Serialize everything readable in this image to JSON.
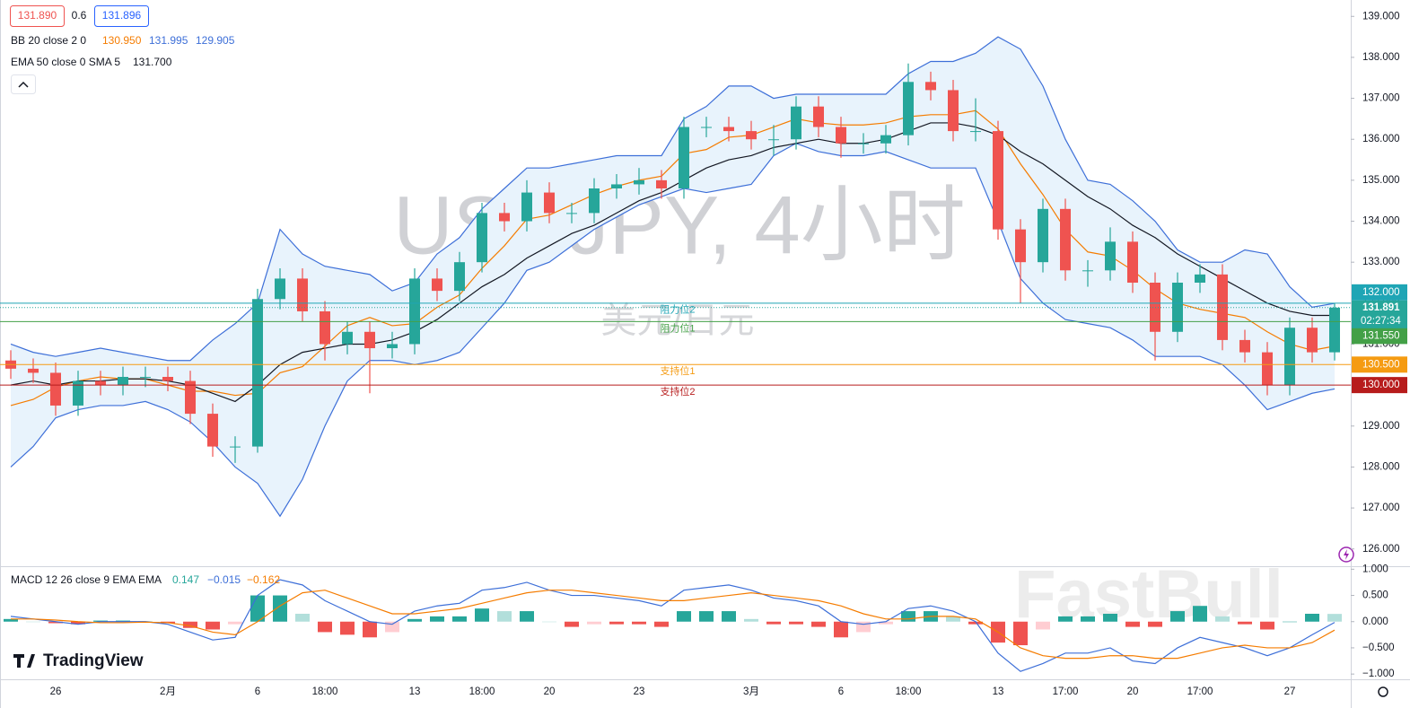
{
  "chart_data": {
    "type": "candlestick",
    "title": "USDJPY, 4小时",
    "subtitle": "美元/日元",
    "quote": [
      "131.890",
      "0.6",
      "131.896"
    ],
    "x": [
      null,
      null,
      "26",
      null,
      null,
      null,
      null,
      "2月",
      null,
      null,
      null,
      "6",
      null,
      null,
      "18:00",
      null,
      null,
      null,
      "13",
      null,
      null,
      "18:00",
      null,
      null,
      "20",
      null,
      null,
      null,
      "23",
      null,
      null,
      null,
      null,
      "3月",
      null,
      null,
      null,
      "6",
      null,
      null,
      "18:00",
      null,
      null,
      null,
      "13",
      null,
      null,
      "17:00",
      null,
      null,
      "20",
      null,
      null,
      "17:00",
      null,
      null,
      null,
      "27",
      null,
      null
    ],
    "open": [
      130.6,
      130.4,
      130.3,
      129.5,
      130.1,
      130.0,
      130.2,
      130.2,
      130.1,
      129.3,
      128.5,
      128.5,
      132.1,
      132.6,
      131.8,
      131.0,
      131.3,
      130.9,
      131.0,
      132.6,
      132.3,
      133.0,
      134.2,
      134.0,
      134.7,
      134.2,
      134.2,
      134.8,
      134.9,
      135.0,
      134.8,
      136.3,
      136.3,
      136.2,
      136.0,
      136.0,
      136.8,
      136.3,
      135.9,
      135.9,
      136.1,
      137.4,
      137.2,
      136.2,
      136.2,
      133.8,
      133.0,
      134.3,
      132.8,
      132.8,
      133.5,
      132.5,
      131.3,
      132.5,
      132.7,
      131.1,
      130.8,
      130.0,
      131.4,
      130.8
    ],
    "high": [
      130.85,
      130.65,
      130.55,
      130.35,
      130.35,
      130.45,
      130.45,
      130.45,
      130.35,
      129.55,
      128.75,
      132.35,
      132.85,
      132.85,
      132.05,
      131.55,
      131.55,
      131.3,
      132.85,
      132.85,
      133.25,
      134.45,
      134.45,
      135.0,
      134.95,
      134.45,
      135.05,
      135.15,
      135.3,
      135.25,
      136.55,
      136.55,
      136.55,
      136.45,
      136.35,
      137.05,
      137.05,
      136.55,
      136.15,
      136.35,
      137.85,
      137.65,
      137.45,
      137.0,
      136.45,
      134.05,
      134.55,
      134.55,
      133.05,
      133.85,
      133.75,
      132.75,
      132.75,
      132.95,
      132.95,
      131.35,
      131.05,
      131.65,
      131.65,
      132.0
    ],
    "low": [
      130.15,
      130.05,
      129.25,
      129.25,
      129.75,
      129.75,
      129.95,
      129.85,
      129.05,
      128.25,
      128.1,
      128.35,
      131.85,
      131.55,
      130.6,
      130.75,
      129.8,
      130.65,
      130.75,
      132.05,
      132.05,
      132.75,
      133.75,
      133.75,
      133.95,
      133.95,
      133.95,
      134.55,
      134.65,
      134.55,
      134.55,
      136.05,
      135.95,
      135.75,
      135.6,
      135.75,
      136.05,
      135.55,
      135.65,
      135.65,
      135.85,
      136.95,
      135.95,
      135.95,
      133.55,
      132.0,
      132.75,
      132.55,
      132.4,
      132.55,
      132.25,
      130.6,
      131.05,
      132.25,
      130.85,
      130.55,
      129.75,
      129.75,
      130.55,
      130.6
    ],
    "close": [
      130.4,
      130.3,
      129.5,
      130.1,
      130.0,
      130.2,
      130.2,
      130.1,
      129.3,
      128.5,
      128.5,
      132.1,
      132.6,
      131.8,
      131.0,
      131.3,
      130.9,
      131.0,
      132.6,
      132.3,
      133.0,
      134.2,
      134.0,
      134.7,
      134.2,
      134.2,
      134.8,
      134.9,
      135.0,
      134.8,
      136.3,
      136.3,
      136.2,
      136.0,
      136.0,
      136.8,
      136.3,
      135.9,
      135.9,
      136.1,
      137.4,
      137.2,
      136.2,
      136.2,
      133.8,
      133.0,
      134.3,
      132.8,
      132.8,
      133.5,
      132.5,
      131.3,
      132.5,
      132.7,
      131.1,
      130.8,
      130.0,
      131.4,
      130.8,
      131.89
    ],
    "up_color": "#26a69a",
    "down_color": "#ef5350",
    "ylim": [
      125.6,
      139.4
    ],
    "yticks": [
      {
        "value": 139,
        "label": "139.000"
      },
      {
        "value": 138,
        "label": "138.000"
      },
      {
        "value": 137,
        "label": "137.000"
      },
      {
        "value": 136,
        "label": "136.000"
      },
      {
        "value": 135,
        "label": "135.000"
      },
      {
        "value": 134,
        "label": "134.000"
      },
      {
        "value": 133,
        "label": "133.000"
      },
      {
        "value": 132,
        "label": "132.000"
      },
      {
        "value": 131,
        "label": "131.000"
      },
      {
        "value": 130,
        "label": "130.000"
      },
      {
        "value": 129,
        "label": "129.000"
      },
      {
        "value": 128,
        "label": "128.000"
      },
      {
        "value": 127,
        "label": "127.000"
      },
      {
        "value": 126,
        "label": "126.000"
      }
    ],
    "bands": {
      "label": "BB 20 close 2 0",
      "fill": "#e8f3fc",
      "basis": {
        "color": "#f57c00",
        "value_label": "130.950",
        "values": [
          129.5,
          129.65,
          129.95,
          130.1,
          130.2,
          130.15,
          130.15,
          130.0,
          129.85,
          129.85,
          129.75,
          129.8,
          130.3,
          130.45,
          130.95,
          131.45,
          131.65,
          131.45,
          131.5,
          131.9,
          132.2,
          132.85,
          133.4,
          134.05,
          134.15,
          134.4,
          134.65,
          134.85,
          135.0,
          135.1,
          135.65,
          135.75,
          136.05,
          136.1,
          136.3,
          136.5,
          136.4,
          136.35,
          136.35,
          136.4,
          136.55,
          136.6,
          136.6,
          136.7,
          136.25,
          135.4,
          134.65,
          133.8,
          133.25,
          133.15,
          132.8,
          132.35,
          132.0,
          131.85,
          131.75,
          131.65,
          131.3,
          131.0,
          130.85,
          130.95
        ]
      },
      "upper": {
        "color": "#3d6fd8",
        "value_label": "131.995",
        "values": [
          131.0,
          130.8,
          130.7,
          130.8,
          130.9,
          130.8,
          130.7,
          130.6,
          130.6,
          131.1,
          131.5,
          132.0,
          133.8,
          133.2,
          132.9,
          132.8,
          132.7,
          132.3,
          132.5,
          133.2,
          133.6,
          134.3,
          134.8,
          135.3,
          135.3,
          135.4,
          135.5,
          135.6,
          135.6,
          135.6,
          136.5,
          136.8,
          137.3,
          137.3,
          137.0,
          137.1,
          137.1,
          137.1,
          137.1,
          137.1,
          137.6,
          137.9,
          137.9,
          138.1,
          138.5,
          138.2,
          137.3,
          136.0,
          135.0,
          134.9,
          134.5,
          134.0,
          133.3,
          133.0,
          133.0,
          133.3,
          133.2,
          132.4,
          131.9,
          131.995
        ]
      },
      "lower": {
        "color": "#3d6fd8",
        "value_label": "129.905",
        "values": [
          128.0,
          128.5,
          129.2,
          129.4,
          129.5,
          129.5,
          129.6,
          129.4,
          129.1,
          128.6,
          128.0,
          127.6,
          126.8,
          127.7,
          129.0,
          130.1,
          130.6,
          130.6,
          130.5,
          130.6,
          130.8,
          131.4,
          132.0,
          132.8,
          133.0,
          133.4,
          133.8,
          134.1,
          134.4,
          134.6,
          134.8,
          134.7,
          134.8,
          134.9,
          135.6,
          135.9,
          135.7,
          135.6,
          135.6,
          135.7,
          135.5,
          135.3,
          135.3,
          135.3,
          134.0,
          132.6,
          132.0,
          131.6,
          131.5,
          131.4,
          131.1,
          130.7,
          130.7,
          130.7,
          130.5,
          130.0,
          129.4,
          129.6,
          129.8,
          129.905
        ]
      }
    },
    "ema": {
      "label": "EMA 50 close 0 SMA 5",
      "color": "#131722",
      "value_label": "131.700",
      "values": [
        130.0,
        130.1,
        130.0,
        130.1,
        130.1,
        130.15,
        130.15,
        130.1,
        130.0,
        129.8,
        129.6,
        130.0,
        130.5,
        130.8,
        130.9,
        131.0,
        131.0,
        131.1,
        131.3,
        131.6,
        132.0,
        132.4,
        132.7,
        133.1,
        133.4,
        133.7,
        133.9,
        134.2,
        134.5,
        134.7,
        135.0,
        135.3,
        135.5,
        135.6,
        135.8,
        135.9,
        136.0,
        135.9,
        135.9,
        136.0,
        136.2,
        136.4,
        136.4,
        136.3,
        136.1,
        135.7,
        135.4,
        135.0,
        134.6,
        134.3,
        133.9,
        133.6,
        133.2,
        132.9,
        132.6,
        132.3,
        132.0,
        131.8,
        131.7,
        131.7
      ]
    },
    "levels": [
      {
        "value": 132,
        "label": "132.000",
        "name": "阻力位2",
        "color": "#1fa5b5"
      },
      {
        "value": 131.55,
        "label": "131.550",
        "name": "阻力位1",
        "color": "#43a047"
      },
      {
        "value": 130.5,
        "label": "130.500",
        "name": "支持位1",
        "color": "#f59b12"
      },
      {
        "value": 130,
        "label": "130.000",
        "name": "支持位2",
        "color": "#b71c1c"
      }
    ],
    "last_price": {
      "value": 131.891,
      "label": "131.891",
      "countdown": "02:27:34",
      "color": "#26a69a"
    },
    "macd": {
      "label": "MACD 12 26 close 9 EMA EMA",
      "ylim": [
        -1.1,
        1.04
      ],
      "yticks": [
        {
          "value": 1,
          "label": "1.000"
        },
        {
          "value": 0.5,
          "label": "0.500"
        },
        {
          "value": 0,
          "label": "0.000"
        },
        {
          "value": -0.5,
          "label": "−0.500"
        },
        {
          "value": -1,
          "label": "−1.000"
        }
      ],
      "histogram": {
        "value_label": "0.147",
        "color": "#26a69a",
        "values": [
          0.05,
          0,
          -0.03,
          -0.05,
          0.02,
          0.02,
          0.01,
          -0.03,
          -0.12,
          -0.15,
          -0.05,
          0.5,
          0.5,
          0.15,
          -0.2,
          -0.25,
          -0.3,
          -0.2,
          0.05,
          0.1,
          0.1,
          0.25,
          0.2,
          0.2,
          0,
          -0.1,
          -0.05,
          -0.05,
          -0.05,
          -0.1,
          0.2,
          0.2,
          0.2,
          0.05,
          -0.05,
          -0.05,
          -0.1,
          -0.3,
          -0.2,
          -0.05,
          0.2,
          0.2,
          0.1,
          -0.05,
          -0.4,
          -0.45,
          -0.15,
          0.1,
          0.1,
          0.15,
          -0.1,
          -0.1,
          0.2,
          0.3,
          0.1,
          -0.05,
          -0.15,
          0,
          0.15,
          0.147
        ]
      },
      "macd": {
        "value_label": "−0.015",
        "color": "#3d6fd8",
        "values": [
          0.1,
          0.05,
          0,
          -0.05,
          0,
          0,
          0,
          -0.05,
          -0.2,
          -0.35,
          -0.3,
          0.5,
          0.8,
          0.7,
          0.4,
          0.2,
          0,
          -0.05,
          0.2,
          0.3,
          0.35,
          0.6,
          0.65,
          0.75,
          0.6,
          0.5,
          0.5,
          0.45,
          0.4,
          0.3,
          0.6,
          0.65,
          0.7,
          0.6,
          0.45,
          0.4,
          0.3,
          0,
          -0.05,
          0,
          0.25,
          0.3,
          0.2,
          0,
          -0.6,
          -0.95,
          -0.8,
          -0.6,
          -0.6,
          -0.5,
          -0.75,
          -0.8,
          -0.5,
          -0.3,
          -0.4,
          -0.5,
          -0.65,
          -0.5,
          -0.25,
          -0.015
        ]
      },
      "signal": {
        "value_label": "−0.162",
        "color": "#f57c00",
        "values": [
          0.05,
          0.05,
          0.03,
          0,
          -0.02,
          -0.02,
          -0.01,
          -0.02,
          -0.08,
          -0.2,
          -0.25,
          0,
          0.3,
          0.55,
          0.6,
          0.45,
          0.3,
          0.15,
          0.15,
          0.2,
          0.25,
          0.35,
          0.45,
          0.55,
          0.6,
          0.6,
          0.55,
          0.5,
          0.45,
          0.4,
          0.4,
          0.45,
          0.5,
          0.55,
          0.5,
          0.45,
          0.4,
          0.3,
          0.15,
          0.05,
          0.05,
          0.1,
          0.1,
          0.05,
          -0.2,
          -0.5,
          -0.65,
          -0.7,
          -0.7,
          -0.65,
          -0.65,
          -0.7,
          -0.7,
          -0.6,
          -0.5,
          -0.45,
          -0.5,
          -0.5,
          -0.4,
          -0.162
        ]
      }
    }
  },
  "branding": {
    "logo": "TradingView",
    "watermark": "FastBull"
  }
}
